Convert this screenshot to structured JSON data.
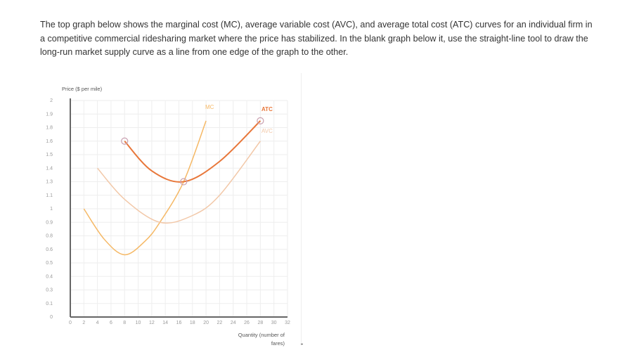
{
  "prompt": "The top graph below shows the marginal cost (MC), average variable cost (AVC), and average total cost (ATC) curves for an individual firm in a competitive commercial ridesharing market where the price has stabilized. In the blank graph below it, use the straight-line tool to draw the long-run market supply curve as a line from one edge of the graph to the other.",
  "chart_data": {
    "type": "line",
    "title": "",
    "ylabel": "Price ($ per mile)",
    "xlabel": "Quantity (number of fares)",
    "xlim": [
      0,
      32
    ],
    "ylim": [
      0,
      2
    ],
    "grid": true,
    "x_ticks": [
      "0",
      "2",
      "4",
      "6",
      "8",
      "10",
      "12",
      "14",
      "16",
      "18",
      "20",
      "22",
      "24",
      "26",
      "28",
      "30",
      "32"
    ],
    "y_ticks": [
      "0",
      "0.1",
      "0.3",
      "0.4",
      "0.5",
      "0.6",
      "0.8",
      "0.9",
      "1",
      "1.1",
      "1.3",
      "1.4",
      "1.5",
      "1.6",
      "1.8",
      "1.9",
      "2"
    ],
    "series": [
      {
        "name": "MC",
        "color": "#f5b865",
        "points": [
          [
            2,
            1.0
          ],
          [
            5,
            0.75
          ],
          [
            8,
            0.56
          ],
          [
            11,
            0.72
          ],
          [
            13.2,
            0.9
          ],
          [
            16.7,
            1.3
          ],
          [
            20,
            1.85
          ]
        ]
      },
      {
        "name": "AVC",
        "color": "#f2c8a8",
        "points": [
          [
            4,
            1.4
          ],
          [
            8,
            1.07
          ],
          [
            13.2,
            0.9
          ],
          [
            18,
            0.95
          ],
          [
            22,
            1.1
          ],
          [
            28,
            1.6
          ]
        ]
      },
      {
        "name": "ATC",
        "color": "#e8773a",
        "points": [
          [
            8,
            1.6
          ],
          [
            12,
            1.38
          ],
          [
            16.7,
            1.3
          ],
          [
            22,
            1.45
          ],
          [
            28,
            1.85
          ]
        ],
        "handles": [
          [
            8,
            1.6
          ],
          [
            16.7,
            1.3
          ],
          [
            28,
            1.85
          ]
        ]
      }
    ]
  }
}
